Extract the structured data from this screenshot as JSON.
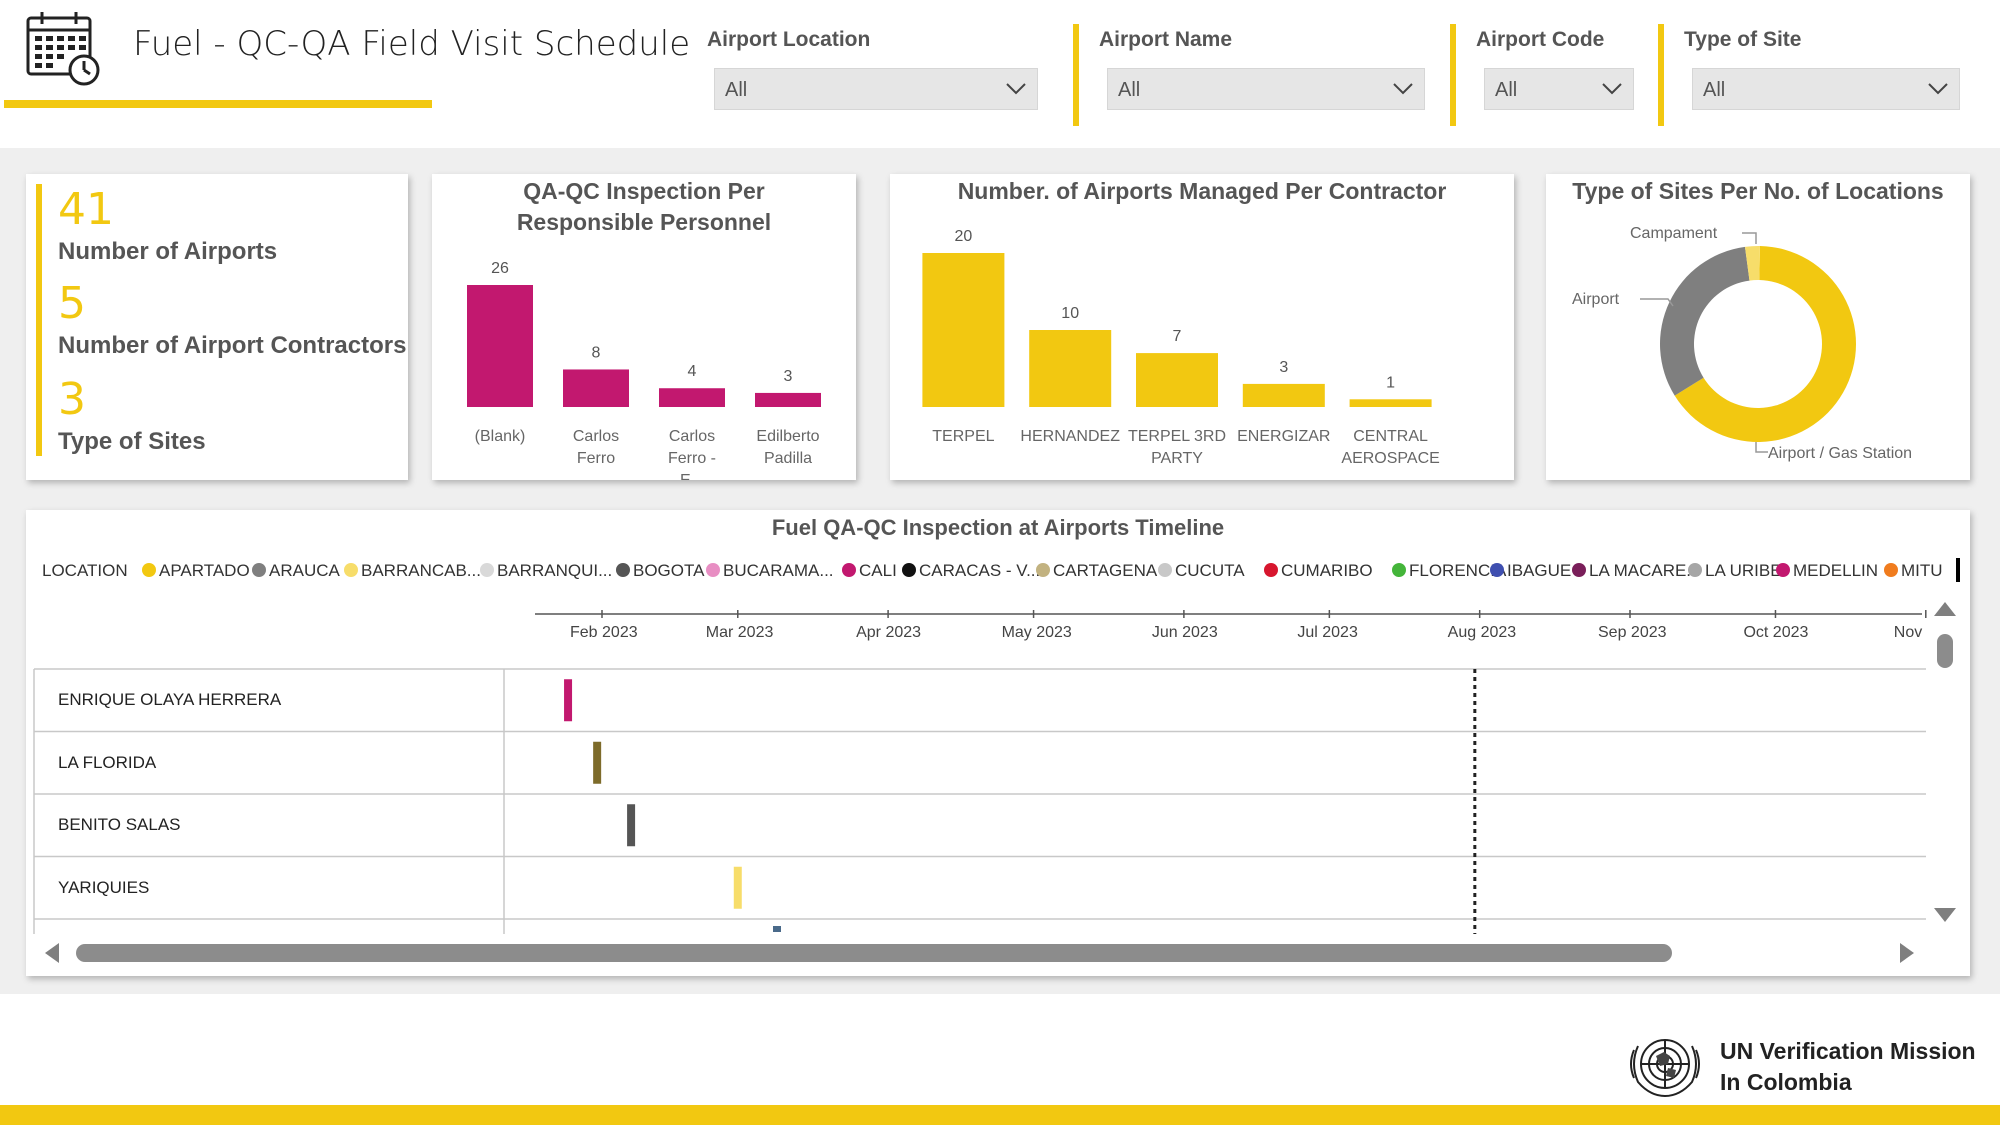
{
  "header": {
    "title": "Fuel - QC-QA Field Visit Schedule",
    "icon": "calendar-clock-icon"
  },
  "slicers": [
    {
      "label": "Airport Location",
      "value": "All"
    },
    {
      "label": "Airport Name",
      "value": "All"
    },
    {
      "label": "Airport Code",
      "value": "All"
    },
    {
      "label": "Type of Site",
      "value": "All"
    }
  ],
  "kpis": [
    {
      "value": "41",
      "label": "Number of Airports"
    },
    {
      "value": "5",
      "label": "Number of Airport Contractors"
    },
    {
      "value": "3",
      "label": "Type of Sites"
    }
  ],
  "colors": {
    "accent": "#f2c811",
    "magenta": "#c2186f",
    "gray": "#7f7f7f"
  },
  "chart_data": [
    {
      "type": "bar",
      "title": "QA-QC Inspection Per Responsible Personnel",
      "categories": [
        "(Blank)",
        "Carlos Ferro",
        "Carlos Ferro - E...",
        "Edilberto Padilla"
      ],
      "values": [
        26,
        8,
        4,
        3
      ],
      "color": "#c2186f"
    },
    {
      "type": "bar",
      "title": "Number. of Airports Managed Per Contractor",
      "categories": [
        "TERPEL",
        "HERNANDEZ",
        "TERPEL 3RD PARTY",
        "ENERGIZAR",
        "CENTRAL AEROSPACE"
      ],
      "values": [
        20,
        10,
        7,
        3,
        1
      ],
      "color": "#f2c811"
    },
    {
      "type": "pie",
      "title": "Type of Sites Per No. of Locations",
      "labels": [
        "Airport / Gas Station",
        "Airport",
        "Campament"
      ],
      "values": [
        27,
        13,
        1
      ],
      "colors": [
        "#f2c811",
        "#7f7f7f",
        "#f7dd6a"
      ]
    }
  ],
  "timeline": {
    "title": "Fuel QA-QC Inspection at Airports Timeline",
    "legend_title": "LOCATION",
    "legend": [
      {
        "name": "APARTADO",
        "color": "#f2c811"
      },
      {
        "name": "ARAUCA",
        "color": "#7f7f7f"
      },
      {
        "name": "BARRANCAB...",
        "color": "#f7dd6a"
      },
      {
        "name": "BARRANQUI...",
        "color": "#d9d9d9"
      },
      {
        "name": "BOGOTA",
        "color": "#555555"
      },
      {
        "name": "BUCARAMA...",
        "color": "#e88ec3"
      },
      {
        "name": "CALI",
        "color": "#c2186f"
      },
      {
        "name": "CARACAS - V...",
        "color": "#111111"
      },
      {
        "name": "CARTAGENA",
        "color": "#c2b280"
      },
      {
        "name": "CUCUTA",
        "color": "#c8c8c8"
      },
      {
        "name": "CUMARIBO",
        "color": "#d7162e"
      },
      {
        "name": "FLORENCIA",
        "color": "#44b53a"
      },
      {
        "name": "IBAGUE",
        "color": "#3f4fb0"
      },
      {
        "name": "LA MACARE...",
        "color": "#7a1f5a"
      },
      {
        "name": "LA URIBE",
        "color": "#a6a6a6"
      },
      {
        "name": "MEDELLIN",
        "color": "#c2186f"
      },
      {
        "name": "MITU",
        "color": "#f07c1e"
      }
    ],
    "months": [
      "Feb 2023",
      "Mar 2023",
      "Apr 2023",
      "May 2023",
      "Jun 2023",
      "Jul 2023",
      "Aug 2023",
      "Sep 2023",
      "Oct 2023",
      "Nov"
    ],
    "rows": [
      {
        "name": "ENRIQUE OLAYA HERRERA",
        "date": "2023-01-25",
        "color": "#c2186f"
      },
      {
        "name": "LA FLORIDA",
        "date": "2023-01-31",
        "color": "#7d6b2a"
      },
      {
        "name": "BENITO SALAS",
        "date": "2023-02-07",
        "color": "#555555"
      },
      {
        "name": "YARIQUIES",
        "date": "2023-03-01",
        "color": "#f7dd6a"
      }
    ]
  },
  "footer": {
    "org_line1": "UN Verification Mission",
    "org_line2": "In Colombia",
    "emblem": "un-emblem-icon"
  }
}
